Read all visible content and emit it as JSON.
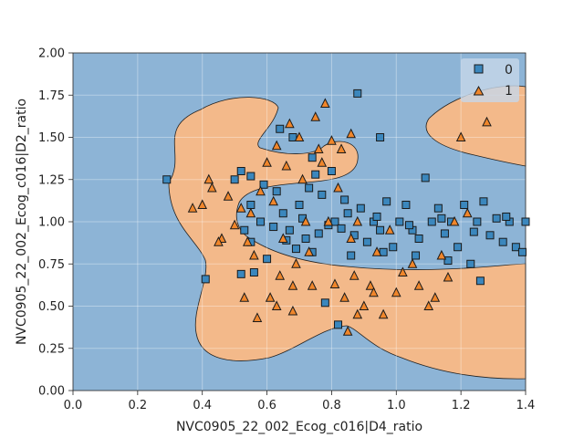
{
  "chart_data": {
    "type": "scatter",
    "xlabel": "NVC0905_22_002_Ecog_c016|D4_ratio",
    "ylabel": "NVC0905_22_002_Ecog_c016|D2_ratio",
    "xlim": [
      0.0,
      1.4
    ],
    "ylim": [
      0.0,
      2.0
    ],
    "x_ticks": [
      "0.0",
      "0.2",
      "0.4",
      "0.6",
      "0.8",
      "1.0",
      "1.2",
      "1.4"
    ],
    "y_ticks": [
      "0.00",
      "0.25",
      "0.50",
      "0.75",
      "1.00",
      "1.25",
      "1.50",
      "1.75",
      "2.00"
    ],
    "grid": true,
    "legend_placement": "top-right",
    "background": "decision regions: class 1 region (orange) forming a crescent around the central class 0 band, plus an upper-right lobe; class 0 region (blue) elsewhere",
    "colors": {
      "class0_region": "#8db4d6",
      "class1_region": "#f3b98a",
      "class0_marker": "#3b87bd",
      "class1_marker": "#f0862b",
      "marker_edge": "#1a1a1a",
      "boundary": "#222222"
    },
    "series": [
      {
        "name": "0",
        "marker": "square",
        "points": [
          [
            0.29,
            1.25
          ],
          [
            0.41,
            0.66
          ],
          [
            0.5,
            1.25
          ],
          [
            0.52,
            1.3
          ],
          [
            0.55,
            1.27
          ],
          [
            0.55,
            1.1
          ],
          [
            0.53,
            0.95
          ],
          [
            0.55,
            0.88
          ],
          [
            0.56,
            0.7
          ],
          [
            0.59,
            1.22
          ],
          [
            0.63,
            1.18
          ],
          [
            0.65,
            1.05
          ],
          [
            0.67,
            0.95
          ],
          [
            0.69,
            0.84
          ],
          [
            0.7,
            1.1
          ],
          [
            0.72,
            0.9
          ],
          [
            0.74,
            0.82
          ],
          [
            0.75,
            1.28
          ],
          [
            0.77,
            1.16
          ],
          [
            0.79,
            0.98
          ],
          [
            0.81,
            1.0
          ],
          [
            0.83,
            0.96
          ],
          [
            0.85,
            1.05
          ],
          [
            0.87,
            0.92
          ],
          [
            0.88,
            1.76
          ],
          [
            0.89,
            1.08
          ],
          [
            0.91,
            0.88
          ],
          [
            0.93,
            1.0
          ],
          [
            0.95,
            0.95
          ],
          [
            0.97,
            1.12
          ],
          [
            0.99,
            0.85
          ],
          [
            1.01,
            1.0
          ],
          [
            1.03,
            1.1
          ],
          [
            1.05,
            0.95
          ],
          [
            1.07,
            0.9
          ],
          [
            1.09,
            1.26
          ],
          [
            1.11,
            1.0
          ],
          [
            1.13,
            1.08
          ],
          [
            1.15,
            0.93
          ],
          [
            1.17,
            1.0
          ],
          [
            1.19,
            0.85
          ],
          [
            1.21,
            1.1
          ],
          [
            1.23,
            0.75
          ],
          [
            1.25,
            1.0
          ],
          [
            1.27,
            1.12
          ],
          [
            1.29,
            0.92
          ],
          [
            1.31,
            1.02
          ],
          [
            1.33,
            0.88
          ],
          [
            1.35,
            1.0
          ],
          [
            1.37,
            0.85
          ],
          [
            1.39,
            0.82
          ],
          [
            1.4,
            1.0
          ],
          [
            0.64,
            1.55
          ],
          [
            0.68,
            1.5
          ],
          [
            0.74,
            1.38
          ],
          [
            0.8,
            1.3
          ],
          [
            0.95,
            1.5
          ],
          [
            0.78,
            0.52
          ],
          [
            0.82,
            0.39
          ],
          [
            0.6,
            0.78
          ],
          [
            0.62,
            0.97
          ],
          [
            0.71,
            1.02
          ],
          [
            0.76,
            0.93
          ],
          [
            0.86,
            0.8
          ],
          [
            0.96,
            0.82
          ],
          [
            1.06,
            0.8
          ],
          [
            1.16,
            0.77
          ],
          [
            1.26,
            0.65
          ],
          [
            0.58,
            1.0
          ],
          [
            0.66,
            0.89
          ],
          [
            0.73,
            1.2
          ],
          [
            0.84,
            1.13
          ],
          [
            0.94,
            1.03
          ],
          [
            1.04,
            0.98
          ],
          [
            1.14,
            1.02
          ],
          [
            1.24,
            0.94
          ],
          [
            1.34,
            1.03
          ],
          [
            0.52,
            0.69
          ]
        ]
      },
      {
        "name": "1",
        "marker": "triangle",
        "points": [
          [
            0.37,
            1.08
          ],
          [
            0.4,
            1.1
          ],
          [
            0.42,
            1.25
          ],
          [
            0.43,
            1.2
          ],
          [
            0.46,
            0.9
          ],
          [
            0.48,
            1.15
          ],
          [
            0.5,
            0.98
          ],
          [
            0.52,
            1.08
          ],
          [
            0.54,
            0.88
          ],
          [
            0.56,
            0.8
          ],
          [
            0.58,
            1.18
          ],
          [
            0.6,
            1.35
          ],
          [
            0.61,
            0.55
          ],
          [
            0.63,
            1.45
          ],
          [
            0.64,
            0.68
          ],
          [
            0.65,
            0.9
          ],
          [
            0.67,
            1.58
          ],
          [
            0.69,
            0.75
          ],
          [
            0.7,
            1.5
          ],
          [
            0.72,
            1.0
          ],
          [
            0.73,
            0.82
          ],
          [
            0.75,
            1.62
          ],
          [
            0.76,
            1.43
          ],
          [
            0.78,
            1.7
          ],
          [
            0.79,
            1.0
          ],
          [
            0.8,
            1.48
          ],
          [
            0.81,
            0.63
          ],
          [
            0.82,
            1.2
          ],
          [
            0.84,
            0.55
          ],
          [
            0.86,
            1.52
          ],
          [
            0.87,
            0.68
          ],
          [
            0.88,
            1.0
          ],
          [
            0.9,
            0.5
          ],
          [
            0.92,
            0.62
          ],
          [
            0.94,
            0.82
          ],
          [
            0.96,
            0.45
          ],
          [
            0.98,
            0.95
          ],
          [
            1.0,
            0.58
          ],
          [
            1.02,
            0.7
          ],
          [
            1.05,
            0.75
          ],
          [
            1.07,
            0.62
          ],
          [
            1.1,
            0.5
          ],
          [
            1.12,
            0.55
          ],
          [
            1.14,
            0.8
          ],
          [
            1.16,
            0.67
          ],
          [
            1.18,
            1.0
          ],
          [
            1.2,
            1.5
          ],
          [
            1.22,
            1.05
          ],
          [
            1.28,
            1.59
          ],
          [
            0.53,
            0.55
          ],
          [
            0.57,
            0.43
          ],
          [
            0.63,
            0.5
          ],
          [
            0.68,
            0.47
          ],
          [
            0.74,
            0.62
          ],
          [
            0.85,
            0.35
          ],
          [
            0.88,
            0.45
          ],
          [
            0.93,
            0.58
          ],
          [
            0.66,
            1.33
          ],
          [
            0.71,
            1.25
          ],
          [
            0.77,
            1.35
          ],
          [
            0.83,
            1.43
          ],
          [
            0.45,
            0.88
          ],
          [
            0.55,
            1.05
          ],
          [
            0.62,
            1.12
          ],
          [
            0.68,
            0.62
          ],
          [
            0.86,
            0.9
          ]
        ]
      }
    ],
    "legend": [
      {
        "label": "0",
        "marker": "square"
      },
      {
        "label": "1",
        "marker": "triangle"
      }
    ]
  }
}
